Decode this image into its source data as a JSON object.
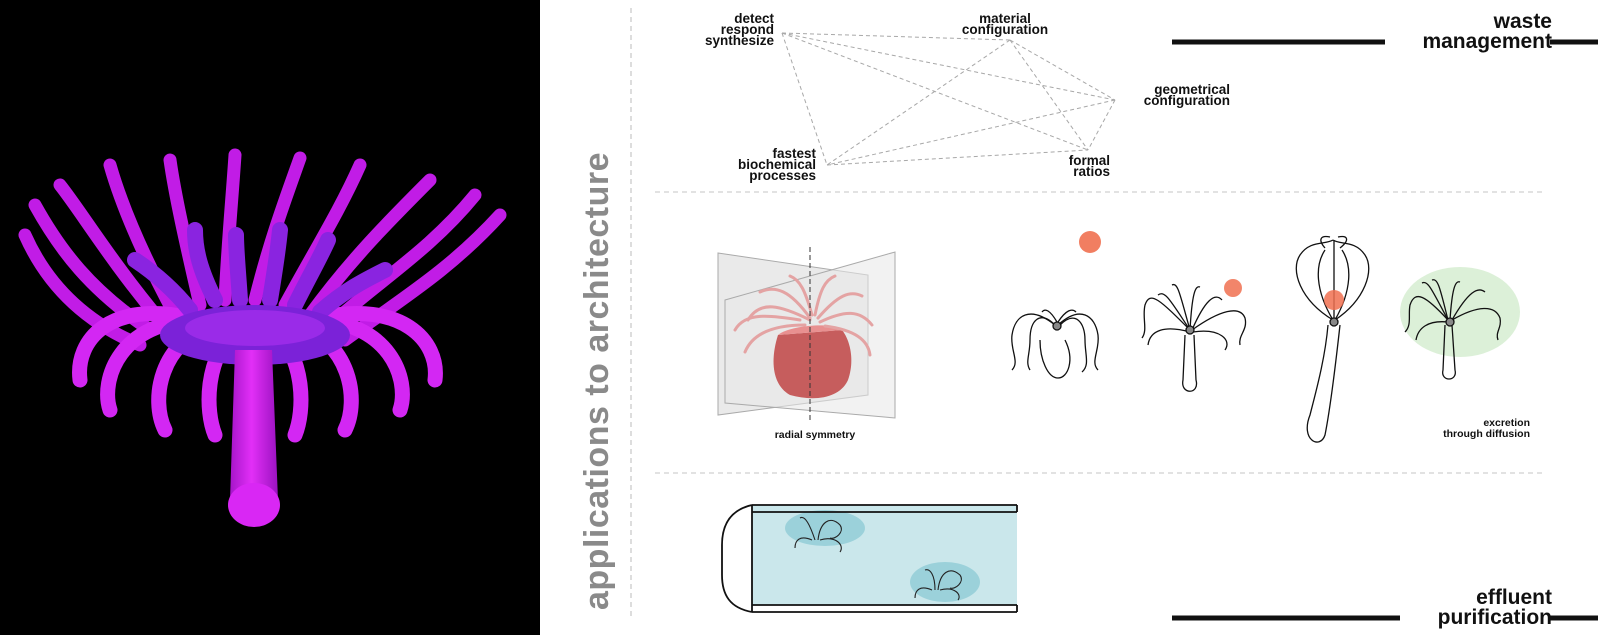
{
  "vertical_title": "applications to architecture",
  "network": {
    "detect": "detect\nrespond\nsynthesize",
    "material": "material\nconfiguration",
    "geometrical": "geometrical\nconfiguration",
    "fastest": "fastest\nbiochemical\nprocesses",
    "formal": "formal\nratios"
  },
  "headings": {
    "waste": "waste\nmanagement",
    "effluent": "effluent\npurification"
  },
  "captions": {
    "radial": "radial symmetry",
    "excretion": "excretion\nthrough diffusion"
  },
  "colors": {
    "magenta": "#d21cf0",
    "purple": "#7a1fd6",
    "orange_dot": "#f07050",
    "green_halo": "#bfe3b8",
    "teal_water": "#9fd3da"
  }
}
